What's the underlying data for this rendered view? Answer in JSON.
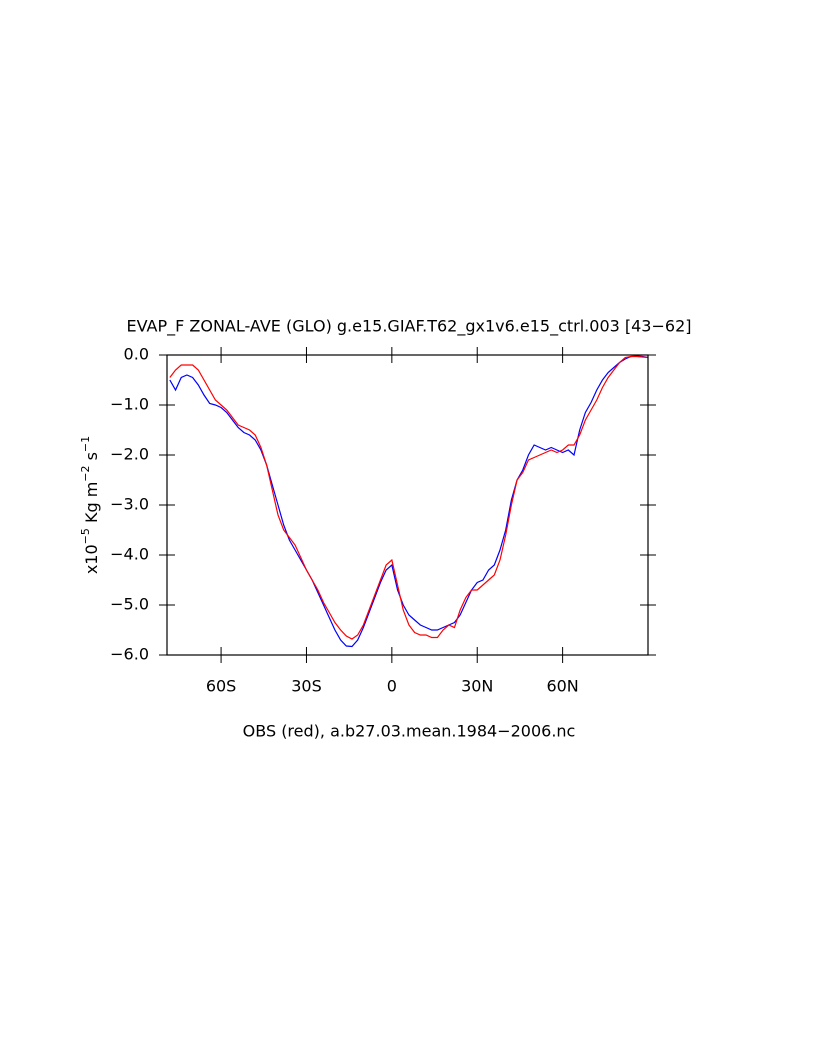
{
  "chart_data": {
    "type": "line",
    "title": "EVAP_F ZONAL-AVE (GLO) g.e15.GIAF.T62_gx1v6.e15_ctrl.003 [43−62]",
    "xlabel": "OBS (red), a.b27.03.mean.1984−2006.nc",
    "ylabel_parts": [
      "x10",
      "−5",
      " Kg m",
      "−2",
      " s",
      "−1"
    ],
    "xlim": [
      -79,
      90
    ],
    "ylim": [
      -6,
      0
    ],
    "xticks": [
      {
        "value": -60,
        "label": "60S"
      },
      {
        "value": -30,
        "label": "30S"
      },
      {
        "value": 0,
        "label": "0"
      },
      {
        "value": 30,
        "label": "30N"
      },
      {
        "value": 60,
        "label": "60N"
      }
    ],
    "yticks": [
      {
        "value": 0,
        "label": "0.0"
      },
      {
        "value": -1,
        "label": "−1.0"
      },
      {
        "value": -2,
        "label": "−2.0"
      },
      {
        "value": -3,
        "label": "−3.0"
      },
      {
        "value": -4,
        "label": "−4.0"
      },
      {
        "value": -5,
        "label": "−5.0"
      },
      {
        "value": -6,
        "label": "−6.0"
      }
    ],
    "x": [
      -78,
      -76,
      -74,
      -72,
      -70,
      -68,
      -66,
      -64,
      -62,
      -60,
      -58,
      -56,
      -54,
      -52,
      -50,
      -48,
      -46,
      -44,
      -42,
      -40,
      -38,
      -36,
      -34,
      -32,
      -30,
      -28,
      -26,
      -24,
      -22,
      -20,
      -18,
      -16,
      -14,
      -12,
      -10,
      -8,
      -6,
      -4,
      -2,
      0,
      2,
      4,
      6,
      8,
      10,
      12,
      14,
      16,
      18,
      20,
      22,
      24,
      26,
      28,
      30,
      32,
      34,
      36,
      38,
      40,
      42,
      44,
      46,
      48,
      50,
      52,
      54,
      56,
      58,
      60,
      62,
      64,
      66,
      68,
      70,
      72,
      74,
      76,
      78,
      80,
      82,
      84,
      86,
      88,
      90
    ],
    "series": [
      {
        "color": "#0000ff",
        "values": [
          -0.5,
          -0.7,
          -0.45,
          -0.4,
          -0.45,
          -0.6,
          -0.8,
          -0.97,
          -1.0,
          -1.05,
          -1.15,
          -1.3,
          -1.45,
          -1.55,
          -1.6,
          -1.7,
          -1.9,
          -2.2,
          -2.6,
          -3.0,
          -3.4,
          -3.7,
          -3.9,
          -4.1,
          -4.3,
          -4.5,
          -4.75,
          -5.0,
          -5.25,
          -5.5,
          -5.7,
          -5.82,
          -5.83,
          -5.7,
          -5.45,
          -5.15,
          -4.85,
          -4.55,
          -4.3,
          -4.2,
          -4.7,
          -5.0,
          -5.2,
          -5.3,
          -5.4,
          -5.45,
          -5.5,
          -5.5,
          -5.45,
          -5.4,
          -5.35,
          -5.2,
          -4.95,
          -4.7,
          -4.55,
          -4.5,
          -4.3,
          -4.2,
          -3.9,
          -3.5,
          -2.9,
          -2.5,
          -2.3,
          -2.0,
          -1.8,
          -1.85,
          -1.9,
          -1.85,
          -1.9,
          -1.95,
          -1.9,
          -2.0,
          -1.5,
          -1.15,
          -0.95,
          -0.7,
          -0.5,
          -0.35,
          -0.25,
          -0.15,
          -0.08,
          -0.03,
          -0.02,
          -0.03,
          -0.05
        ]
      },
      {
        "color": "#ff0000",
        "values": [
          -0.45,
          -0.3,
          -0.2,
          -0.2,
          -0.2,
          -0.3,
          -0.5,
          -0.7,
          -0.9,
          -1.0,
          -1.1,
          -1.25,
          -1.4,
          -1.45,
          -1.5,
          -1.6,
          -1.85,
          -2.2,
          -2.7,
          -3.2,
          -3.5,
          -3.65,
          -3.8,
          -4.05,
          -4.3,
          -4.5,
          -4.7,
          -4.95,
          -5.15,
          -5.35,
          -5.5,
          -5.62,
          -5.68,
          -5.6,
          -5.4,
          -5.1,
          -4.8,
          -4.5,
          -4.2,
          -4.1,
          -4.6,
          -5.1,
          -5.4,
          -5.55,
          -5.6,
          -5.6,
          -5.65,
          -5.65,
          -5.5,
          -5.4,
          -5.45,
          -5.1,
          -4.85,
          -4.7,
          -4.7,
          -4.6,
          -4.5,
          -4.4,
          -4.1,
          -3.6,
          -3.0,
          -2.5,
          -2.35,
          -2.1,
          -2.05,
          -2.0,
          -1.95,
          -1.9,
          -1.95,
          -1.9,
          -1.8,
          -1.8,
          -1.6,
          -1.3,
          -1.1,
          -0.9,
          -0.65,
          -0.45,
          -0.3,
          -0.15,
          -0.05,
          -0.03,
          -0.03,
          -0.04,
          -0.05
        ]
      }
    ]
  }
}
